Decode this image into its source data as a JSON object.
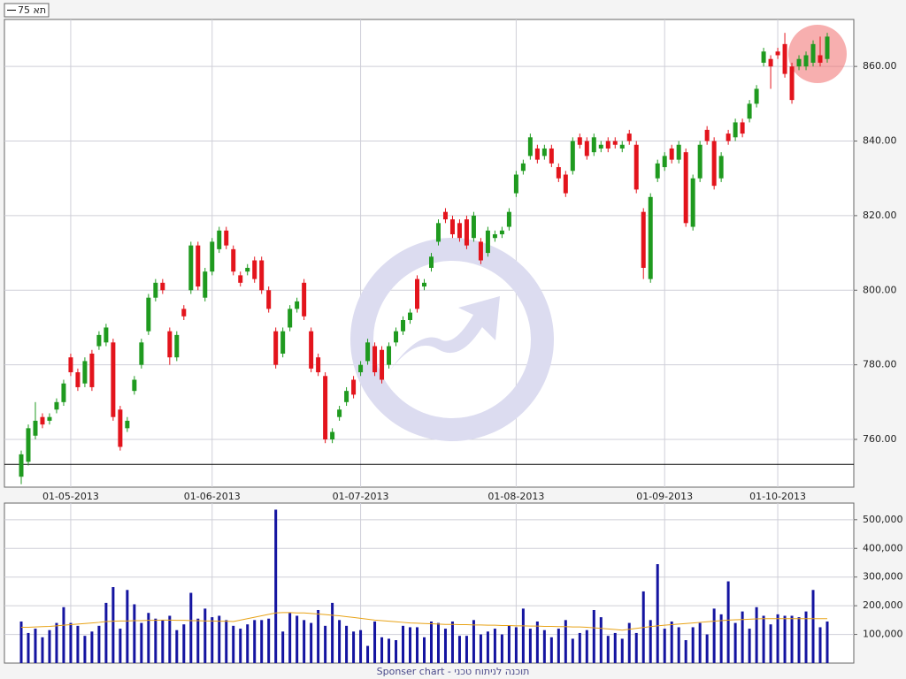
{
  "chart_data": [
    {
      "type": "candlestick",
      "legend_label": "תא 75",
      "categories": [
        null,
        null,
        null,
        null,
        null,
        null,
        null,
        "01-05-2013",
        null,
        null,
        null,
        null,
        null,
        null,
        null,
        null,
        null,
        null,
        null,
        null,
        null,
        null,
        null,
        null,
        null,
        null,
        null,
        "01-06-2013",
        null,
        null,
        null,
        null,
        null,
        null,
        null,
        null,
        null,
        null,
        null,
        null,
        null,
        null,
        null,
        null,
        null,
        null,
        null,
        null,
        "01-07-2013",
        null,
        null,
        null,
        null,
        null,
        null,
        null,
        null,
        null,
        null,
        null,
        null,
        null,
        null,
        null,
        null,
        null,
        null,
        null,
        null,
        null,
        "01-08-2013",
        null,
        null,
        null,
        null,
        null,
        null,
        null,
        null,
        null,
        null,
        null,
        null,
        null,
        null,
        null,
        null,
        null,
        null,
        null,
        null,
        "01-09-2013",
        null,
        null,
        null,
        null,
        null,
        null,
        null,
        null,
        null,
        null,
        null,
        null,
        null,
        null,
        null,
        "01-10-2013",
        null,
        null,
        null,
        null,
        null,
        null,
        null
      ],
      "open": [
        750,
        754,
        761,
        766,
        765,
        768,
        770,
        782,
        778,
        775,
        783,
        785,
        786,
        786,
        768,
        763,
        773,
        780,
        789,
        798,
        802,
        789,
        782,
        795,
        800,
        812,
        798,
        805,
        811,
        816,
        811,
        804,
        805,
        808,
        808,
        800,
        789,
        783,
        790,
        795,
        802,
        789,
        782,
        777,
        760,
        766,
        770,
        776,
        778,
        781,
        785,
        784,
        780,
        786,
        789,
        792,
        803,
        801,
        806,
        813,
        821,
        819,
        818,
        819,
        814,
        813,
        810,
        814,
        815,
        817,
        826,
        832,
        836,
        838,
        836,
        838,
        833,
        831,
        832,
        841,
        840,
        837,
        838,
        840,
        840,
        838,
        842,
        839,
        821,
        803,
        830,
        833,
        838,
        835,
        837,
        817,
        830,
        843,
        840,
        830,
        842,
        841,
        845,
        846,
        850,
        861,
        862,
        864,
        866,
        860,
        860,
        860,
        861,
        863,
        862
      ],
      "high": [
        757,
        764,
        770,
        767,
        767,
        771,
        776,
        783,
        779,
        782,
        784,
        789,
        791,
        787,
        769,
        766,
        777,
        787,
        799,
        803,
        803,
        790,
        789,
        796,
        813,
        813,
        806,
        814,
        817,
        817,
        812,
        805,
        807,
        809,
        809,
        801,
        790,
        790,
        796,
        798,
        803,
        790,
        783,
        778,
        763,
        769,
        774,
        777,
        781,
        787,
        786,
        785,
        786,
        790,
        793,
        795,
        804,
        803,
        810,
        819,
        822,
        820,
        819,
        820,
        821,
        814,
        817,
        816,
        817,
        822,
        832,
        835,
        842,
        839,
        839,
        839,
        834,
        832,
        841,
        842,
        841,
        842,
        840,
        841,
        841,
        840,
        843,
        840,
        822,
        826,
        835,
        837,
        839,
        840,
        838,
        831,
        840,
        844,
        841,
        837,
        843,
        846,
        846,
        851,
        855,
        865,
        863,
        865,
        869,
        861,
        863,
        864,
        867,
        868,
        869
      ],
      "low": [
        748,
        753,
        760,
        763,
        764,
        767,
        769,
        777,
        773,
        774,
        773,
        784,
        785,
        765,
        757,
        762,
        772,
        779,
        788,
        797,
        799,
        780,
        781,
        792,
        799,
        800,
        797,
        804,
        810,
        811,
        804,
        801,
        804,
        802,
        799,
        794,
        779,
        782,
        789,
        794,
        792,
        778,
        777,
        759,
        759,
        765,
        769,
        771,
        777,
        780,
        777,
        775,
        779,
        785,
        788,
        791,
        794,
        800,
        805,
        812,
        818,
        814,
        813,
        811,
        813,
        807,
        809,
        813,
        814,
        816,
        825,
        831,
        835,
        834,
        835,
        833,
        829,
        825,
        831,
        838,
        835,
        836,
        837,
        837,
        838,
        837,
        839,
        826,
        803,
        802,
        829,
        832,
        834,
        834,
        817,
        816,
        829,
        839,
        827,
        829,
        839,
        840,
        841,
        845,
        849,
        860,
        854,
        862,
        857,
        850,
        859,
        859,
        860,
        860,
        861
      ],
      "close": [
        756,
        763,
        765,
        764,
        766,
        770,
        775,
        778,
        774,
        781,
        774,
        788,
        790,
        766,
        758,
        765,
        776,
        786,
        798,
        802,
        800,
        782,
        788,
        793,
        812,
        801,
        805,
        813,
        816,
        812,
        805,
        802,
        806,
        803,
        800,
        795,
        780,
        789,
        795,
        797,
        793,
        779,
        778,
        760,
        762,
        768,
        773,
        772,
        780,
        786,
        778,
        776,
        785,
        789,
        792,
        794,
        795,
        802,
        809,
        818,
        819,
        815,
        814,
        812,
        820,
        808,
        816,
        815,
        816,
        821,
        831,
        834,
        841,
        835,
        838,
        834,
        830,
        826,
        840,
        839,
        836,
        841,
        839,
        838,
        839,
        839,
        840,
        827,
        806,
        825,
        834,
        836,
        835,
        839,
        818,
        830,
        839,
        840,
        828,
        836,
        840,
        845,
        842,
        850,
        854,
        864,
        860,
        863,
        858,
        851,
        862,
        863,
        866,
        861,
        868
      ],
      "up_color": "#1f9a1f",
      "down_color": "#e3141c",
      "reference_line": 753.3,
      "ylim": [
        747.2,
        872.6
      ],
      "yticks": [
        {
          "value": 760,
          "label": "760.00"
        },
        {
          "value": 780,
          "label": "780.00"
        },
        {
          "value": 800,
          "label": "800.00"
        },
        {
          "value": 820,
          "label": "820.00"
        },
        {
          "value": 840,
          "label": "840.00"
        },
        {
          "value": 860,
          "label": "860.00"
        }
      ],
      "grid": true
    },
    {
      "type": "bar",
      "color": "#1414a0",
      "values": [
        145000,
        105000,
        120000,
        90000,
        115000,
        140000,
        195000,
        140000,
        130000,
        95000,
        110000,
        130000,
        210000,
        265000,
        120000,
        255000,
        205000,
        140000,
        175000,
        155000,
        150000,
        165000,
        115000,
        135000,
        245000,
        155000,
        190000,
        160000,
        165000,
        150000,
        130000,
        120000,
        135000,
        150000,
        150000,
        155000,
        535000,
        110000,
        175000,
        165000,
        150000,
        140000,
        185000,
        130000,
        210000,
        150000,
        130000,
        110000,
        115000,
        60000,
        145000,
        90000,
        85000,
        80000,
        130000,
        125000,
        125000,
        90000,
        145000,
        140000,
        120000,
        145000,
        95000,
        95000,
        150000,
        100000,
        110000,
        120000,
        100000,
        130000,
        125000,
        190000,
        120000,
        145000,
        115000,
        90000,
        120000,
        150000,
        85000,
        105000,
        115000,
        185000,
        160000,
        95000,
        105000,
        85000,
        140000,
        105000,
        250000,
        150000,
        345000,
        120000,
        145000,
        125000,
        80000,
        125000,
        140000,
        100000,
        190000,
        170000,
        285000,
        140000,
        180000,
        120000,
        195000,
        165000,
        135000,
        170000,
        165000,
        165000,
        160000,
        180000,
        255000,
        125000,
        145000
      ],
      "line": {
        "color": "#e8a317",
        "values": [
          125000,
          125000,
          126000,
          127000,
          128000,
          130000,
          132000,
          134000,
          136000,
          138000,
          140000,
          142000,
          145000,
          146000,
          147000,
          147000,
          148000,
          148000,
          149000,
          149000,
          150000,
          150000,
          149000,
          149000,
          148000,
          148000,
          147000,
          147000,
          146000,
          146000,
          145000,
          150000,
          155000,
          160000,
          165000,
          170000,
          175000,
          176000,
          176000,
          175000,
          175000,
          173000,
          171000,
          169000,
          167000,
          165000,
          162000,
          159000,
          156000,
          153000,
          150000,
          148000,
          146000,
          144000,
          142000,
          140000,
          139000,
          138000,
          137000,
          136000,
          135000,
          135000,
          134000,
          134000,
          133000,
          133000,
          132000,
          132000,
          131000,
          131000,
          130000,
          130000,
          129000,
          129000,
          128000,
          128000,
          127000,
          127000,
          126000,
          126000,
          125000,
          123000,
          121000,
          119000,
          117000,
          115000,
          118000,
          121000,
          124000,
          127000,
          130000,
          132000,
          134000,
          136000,
          138000,
          140000,
          142000,
          144000,
          146000,
          148000,
          150000,
          151000,
          152000,
          153000,
          154000,
          155000,
          155000,
          155000,
          155000,
          155000,
          155000,
          155000,
          155000,
          155000,
          155000
        ]
      },
      "ylim": [
        0,
        558000
      ],
      "yticks": [
        {
          "value": 100000,
          "label": "100,000"
        },
        {
          "value": 200000,
          "label": "200,000"
        },
        {
          "value": 300000,
          "label": "300,000"
        },
        {
          "value": 400000,
          "label": "400,000"
        },
        {
          "value": 500000,
          "label": "500,000"
        }
      ],
      "grid": true
    }
  ],
  "footer": "Sponser chart - תוכנה לניתוח טכני"
}
